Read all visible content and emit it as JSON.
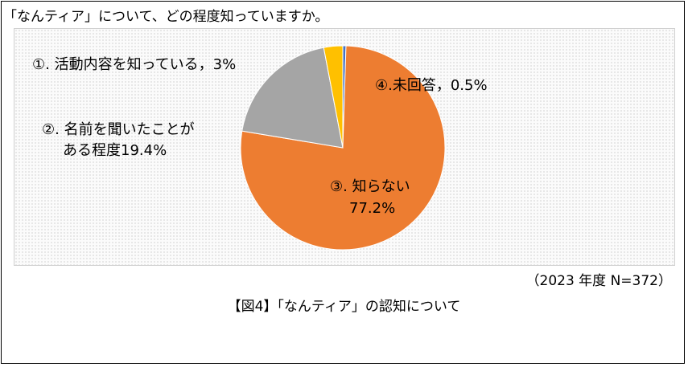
{
  "question": "「なんティア」について、どの程度知っていますか。",
  "note": "（2023 年度 N=372）",
  "caption": "【図4】「なんティア」の認知について",
  "colors": {
    "slice_1": "#FFC000",
    "slice_2": "#A5A5A5",
    "slice_3": "#ED7D31",
    "slice_4": "#4472C4"
  },
  "chart_data": {
    "type": "pie",
    "start_angle": "12 o'clock, clockwise",
    "slices": [
      {
        "label": "④.未回答，0.5%",
        "value": 0.5,
        "color": "#4472C4"
      },
      {
        "label": "③. 知らない 77.2%",
        "label_line1": "③. 知らない",
        "label_line2": "77.2%",
        "value": 77.2,
        "color": "#ED7D31"
      },
      {
        "label": "②. 名前を聞いたことがある程度19.4%",
        "label_line1": "②. 名前を聞いたことが",
        "label_line2": "ある程度19.4%",
        "value": 19.4,
        "color": "#A5A5A5"
      },
      {
        "label": "①. 活動内容を知っている，3%",
        "value": 3,
        "color": "#FFC000"
      }
    ]
  }
}
